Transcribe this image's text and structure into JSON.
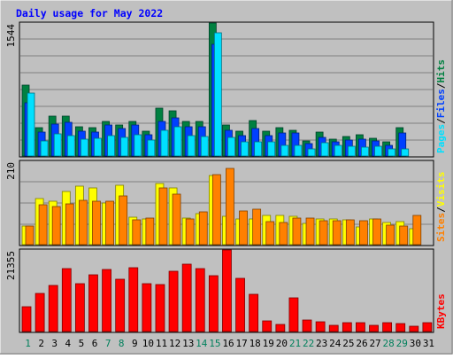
{
  "title": "Daily usage for May 2022",
  "colors": {
    "background": "#c0c0c0",
    "title": "#0000ff",
    "grid": "#808080",
    "hits": "#008040",
    "files": "#0040ff",
    "pages": "#00e0ff",
    "visits": "#ffff00",
    "sites": "#ff8000",
    "kbytes": "#ff0000",
    "weekend_day": "#00805c",
    "weekday": "#000000"
  },
  "chart_data": [
    {
      "type": "bar",
      "name": "hits-files-pages",
      "scale_label": "1544",
      "ylim": [
        0,
        1544
      ],
      "legend": [
        "Pages",
        "Files",
        "Hits"
      ],
      "categories": [
        "1",
        "2",
        "3",
        "4",
        "5",
        "6",
        "7",
        "8",
        "9",
        "10",
        "11",
        "12",
        "13",
        "14",
        "15",
        "16",
        "17",
        "18",
        "19",
        "20",
        "21",
        "22",
        "23",
        "24",
        "25",
        "26",
        "27",
        "28",
        "29",
        "30",
        "31"
      ],
      "series": [
        {
          "name": "Hits",
          "values": [
            820,
            330,
            460,
            460,
            340,
            330,
            400,
            360,
            400,
            290,
            560,
            520,
            400,
            400,
            1544,
            360,
            290,
            410,
            290,
            330,
            300,
            180,
            280,
            200,
            230,
            250,
            210,
            160,
            330,
            0,
            0
          ]
        },
        {
          "name": "Files",
          "values": [
            620,
            280,
            370,
            390,
            290,
            280,
            360,
            320,
            360,
            250,
            400,
            440,
            340,
            340,
            1300,
            300,
            240,
            320,
            240,
            270,
            270,
            140,
            220,
            160,
            190,
            200,
            170,
            120,
            270,
            0,
            0
          ]
        },
        {
          "name": "Pages",
          "values": [
            730,
            170,
            260,
            240,
            200,
            210,
            240,
            220,
            250,
            190,
            300,
            340,
            240,
            230,
            1430,
            220,
            160,
            160,
            160,
            120,
            120,
            80,
            150,
            120,
            110,
            100,
            110,
            80,
            80,
            0,
            0
          ]
        }
      ],
      "values_note": ""
    },
    {
      "type": "bar",
      "name": "visits-sites",
      "scale_label": "210",
      "ylim": [
        0,
        210
      ],
      "legend": [
        "Sites",
        "Visits"
      ],
      "categories": [
        "1",
        "2",
        "3",
        "4",
        "5",
        "6",
        "7",
        "8",
        "9",
        "10",
        "11",
        "12",
        "13",
        "14",
        "15",
        "16",
        "17",
        "18",
        "19",
        "20",
        "21",
        "22",
        "23",
        "24",
        "25",
        "26",
        "27",
        "28",
        "29",
        "30",
        "31"
      ],
      "series": [
        {
          "name": "Visits",
          "values": [
            48,
            117,
            110,
            133,
            147,
            143,
            105,
            150,
            70,
            65,
            155,
            142,
            68,
            78,
            174,
            72,
            65,
            64,
            74,
            74,
            72,
            54,
            64,
            64,
            62,
            44,
            64,
            56,
            58,
            40,
            0
          ]
        },
        {
          "name": "Sites",
          "values": [
            48,
            100,
            96,
            103,
            112,
            110,
            110,
            122,
            63,
            67,
            144,
            128,
            64,
            83,
            176,
            192,
            86,
            90,
            58,
            56,
            68,
            68,
            60,
            60,
            62,
            60,
            64,
            50,
            46,
            74,
            0
          ]
        }
      ]
    },
    {
      "type": "bar",
      "name": "kbytes",
      "scale_label": "21355",
      "ylim": [
        0,
        21355
      ],
      "legend": [
        "KBytes"
      ],
      "categories": [
        "1",
        "2",
        "3",
        "4",
        "5",
        "6",
        "7",
        "8",
        "9",
        "10",
        "11",
        "12",
        "13",
        "14",
        "15",
        "16",
        "17",
        "18",
        "19",
        "20",
        "21",
        "22",
        "23",
        "24",
        "25",
        "26",
        "27",
        "28",
        "29",
        "30",
        "31"
      ],
      "series": [
        {
          "name": "KBytes",
          "values": [
            6400,
            9900,
            12000,
            16400,
            12600,
            14900,
            16200,
            13600,
            16800,
            12600,
            12400,
            15700,
            17700,
            16500,
            14700,
            21355,
            14000,
            9800,
            2900,
            1900,
            8800,
            3000,
            2500,
            1700,
            2400,
            2400,
            1700,
            2300,
            2200,
            1400,
            2400
          ]
        }
      ]
    }
  ],
  "weekend_days": [
    "1",
    "7",
    "8",
    "14",
    "15",
    "21",
    "22",
    "28",
    "29"
  ]
}
